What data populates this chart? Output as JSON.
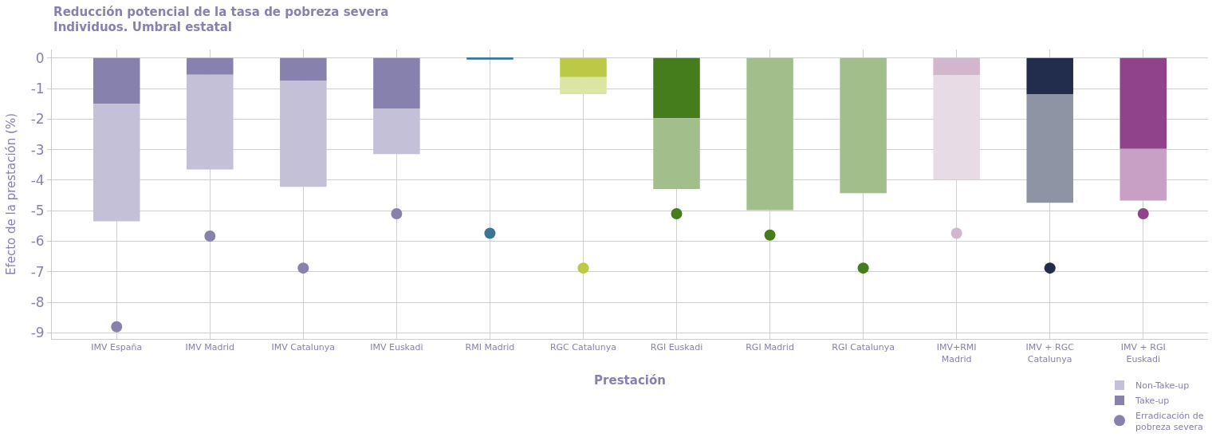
{
  "chart_data": {
    "type": "bar",
    "title": "Reducción potencial de la tasa de pobreza severa",
    "subtitle": "Individuos. Umbral estatal",
    "xlabel": "Prestación",
    "ylabel": "Efecto de la prestación (%)",
    "categories": [
      "IMV España",
      "IMV Madrid",
      "IMV Catalunya",
      "IMV Euskadi",
      "RMI Madrid",
      "RGC Catalunya",
      "RGI Euskadi",
      "RGI Madrid",
      "RGI Catalunya",
      "IMV+RMI Madrid",
      "IMV + RGC Catalunya",
      "IMV + RGI Euskadi"
    ],
    "stacked": true,
    "series": [
      {
        "name": "Take-up",
        "colors": [
          "#8781ae",
          "#8781ae",
          "#8781ae",
          "#8781ae",
          "#3a7694",
          "#bcc946",
          "#457d1c",
          "#457d1c",
          "#457d1c",
          "#d1b6cd",
          "#222d4e",
          "#90428b"
        ],
        "values": [
          -1.5,
          -0.55,
          -0.75,
          -1.65,
          -0.05,
          -0.63,
          -1.97,
          0,
          0,
          -0.57,
          -1.18,
          -2.98
        ]
      },
      {
        "name": "Non-Take-up",
        "colors": [
          "#c4c0d7",
          "#c4c0d7",
          "#c4c0d7",
          "#c4c0d7",
          "#9cbacb",
          "#dde5a3",
          "#a2bf8b",
          "#a2bf8b",
          "#a2bf8b",
          "#e7dbe5",
          "#8e94a4",
          "#c8a0c6"
        ],
        "values": [
          -3.85,
          -3.1,
          -3.47,
          -1.5,
          0,
          -0.55,
          -2.32,
          -4.98,
          -4.43,
          -3.41,
          -3.56,
          -1.69
        ]
      },
      {
        "name": "Erradicación de pobreza severa",
        "type": "scatter",
        "colors": [
          "#8781ae",
          "#8781ae",
          "#8781ae",
          "#8781ae",
          "#3a7694",
          "#bcc946",
          "#457d1c",
          "#457d1c",
          "#457d1c",
          "#d1b6cd",
          "#222d4e",
          "#90428b"
        ],
        "x": [
          "IMV España",
          "IMV Madrid",
          "IMV Catalunya",
          "IMV Euskadi",
          "RMI Madrid",
          "RGC Catalunya",
          "RGI Euskadi",
          "RGI Madrid",
          "RGI Catalunya",
          "IMV+RMI Madrid",
          "IMV + RGC Catalunya",
          "IMV + RGI Euskadi"
        ],
        "values": [
          -8.8,
          -5.83,
          -6.88,
          -5.1,
          -5.74,
          -6.88,
          -5.1,
          -5.8,
          -6.88,
          -5.74,
          -6.88,
          -5.1
        ]
      }
    ],
    "ylim": [
      -9.2,
      0.28
    ],
    "yticks": [
      0,
      -1,
      -2,
      -3,
      -4,
      -5,
      -6,
      -7,
      -8,
      -9
    ],
    "grid": true,
    "legend": "bottom right",
    "marker": "circle"
  }
}
